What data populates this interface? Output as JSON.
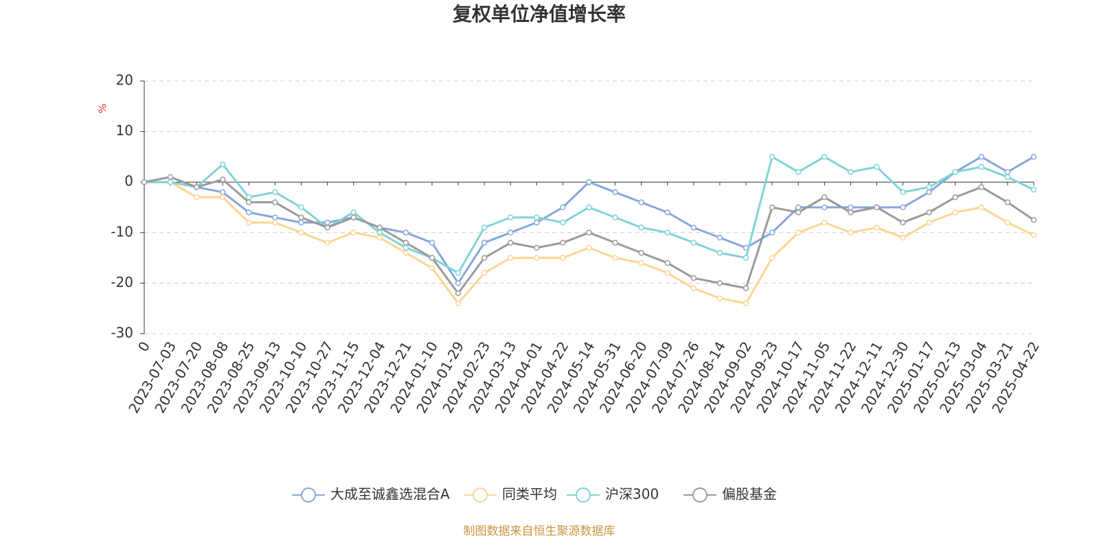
{
  "chart_data": {
    "type": "line",
    "title": "复权单位净值增长率",
    "y_unit": "%",
    "source": "制图数据来自恒生聚源数据库",
    "categories": [
      "0",
      "2023-07-03",
      "2023-07-20",
      "2023-08-08",
      "2023-08-25",
      "2023-09-13",
      "2023-10-10",
      "2023-10-27",
      "2023-11-15",
      "2023-12-04",
      "2023-12-21",
      "2024-01-10",
      "2024-01-29",
      "2024-02-23",
      "2024-03-13",
      "2024-04-01",
      "2024-04-22",
      "2024-05-14",
      "2024-05-31",
      "2024-06-20",
      "2024-07-09",
      "2024-07-26",
      "2024-08-14",
      "2024-09-02",
      "2024-09-23",
      "2024-10-17",
      "2024-11-05",
      "2024-11-22",
      "2024-12-11",
      "2024-12-30",
      "2025-01-17",
      "2025-02-13",
      "2025-03-04",
      "2025-03-21",
      "2025-04-22"
    ],
    "series": [
      {
        "name": "大成至诚鑫选混合A",
        "color": "#86a6da",
        "values": [
          0,
          0,
          -1,
          -2,
          -6,
          -7,
          -8,
          -8,
          -7,
          -9,
          -10,
          -12,
          -20,
          -12,
          -10,
          -8,
          -5,
          0,
          -2,
          -4,
          -6,
          -9,
          -11,
          -13,
          -10,
          -5,
          -5,
          -5,
          -5,
          -5,
          -2,
          2,
          5,
          2,
          5
        ]
      },
      {
        "name": "同类平均",
        "color": "#fdd591",
        "values": [
          0,
          0,
          -3,
          -3,
          -8,
          -8,
          -10,
          -12,
          -10,
          -11,
          -14,
          -17,
          -24,
          -18,
          -15,
          -15,
          -15,
          -13,
          -15,
          -16,
          -18,
          -21,
          -23,
          -24,
          -15,
          -10,
          -8,
          -10,
          -9,
          -11,
          -8,
          -6,
          -5,
          -8,
          -10.5
        ]
      },
      {
        "name": "沪深300",
        "color": "#7fd3d6",
        "values": [
          0,
          0,
          -1,
          3.5,
          -3,
          -2,
          -5,
          -9,
          -6,
          -10,
          -13,
          -15,
          -18,
          -9,
          -7,
          -7,
          -8,
          -5,
          -7,
          -9,
          -10,
          -12,
          -14,
          -15,
          5,
          2,
          5,
          2,
          3,
          -2,
          -1,
          2,
          3,
          1,
          -1.5
        ]
      },
      {
        "name": "偏股基金",
        "color": "#9a9a9a",
        "values": [
          0,
          1,
          -1,
          0.5,
          -4,
          -4,
          -7,
          -9,
          -7,
          -9,
          -12,
          -15,
          -22,
          -15,
          -12,
          -13,
          -12,
          -10,
          -12,
          -14,
          -16,
          -19,
          -20,
          -21,
          -5,
          -6,
          -3,
          -6,
          -5,
          -8,
          -6,
          -3,
          -1,
          -4,
          -7.5
        ]
      }
    ],
    "ylim": [
      -30,
      20
    ],
    "yticks": [
      -30,
      -20,
      -10,
      0,
      10,
      20
    ],
    "grid": true
  }
}
